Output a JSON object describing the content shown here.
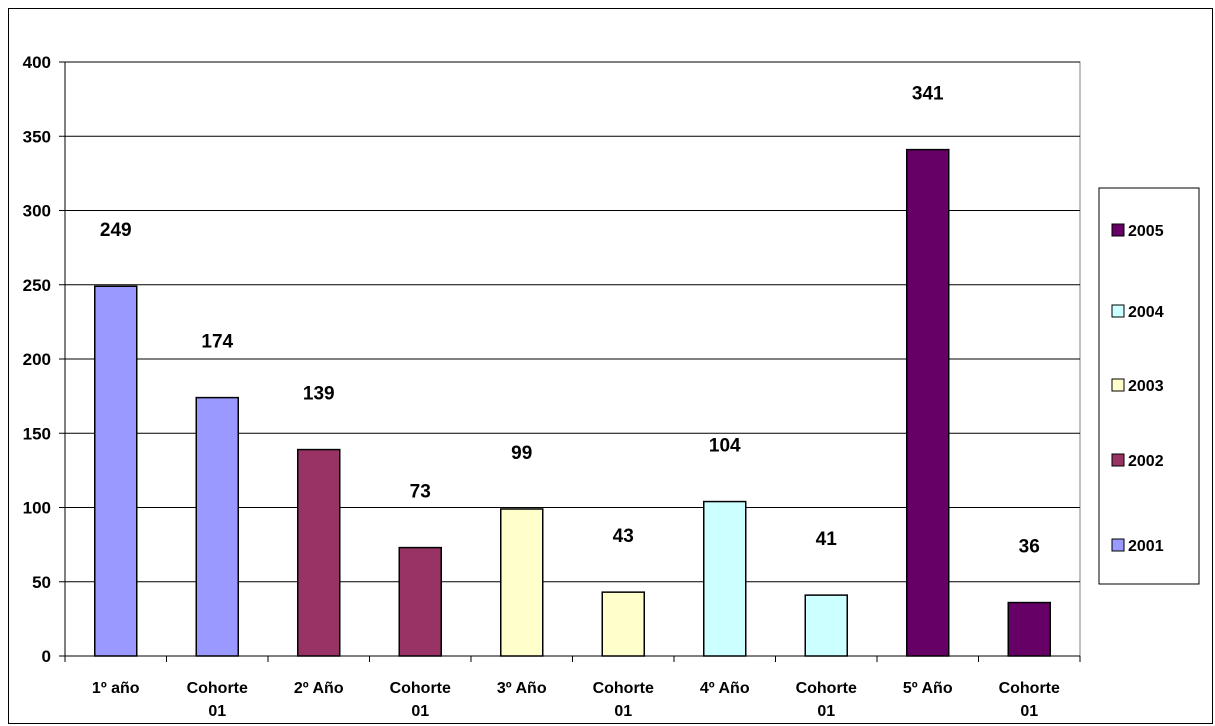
{
  "chart_data": {
    "type": "bar",
    "title": "",
    "xlabel": "",
    "ylabel": "",
    "ylim": [
      0,
      400
    ],
    "yticks": [
      0,
      50,
      100,
      150,
      200,
      250,
      300,
      350,
      400
    ],
    "grid": true,
    "legend_position": "right",
    "categories": [
      {
        "line1": "1º  año",
        "line2": ""
      },
      {
        "line1": "Cohorte",
        "line2": "01"
      },
      {
        "line1": "2º Año",
        "line2": ""
      },
      {
        "line1": "Cohorte",
        "line2": "01"
      },
      {
        "line1": "3º Año",
        "line2": ""
      },
      {
        "line1": "Cohorte",
        "line2": "01"
      },
      {
        "line1": "4º Año",
        "line2": ""
      },
      {
        "line1": "Cohorte",
        "line2": "01"
      },
      {
        "line1": "5º Año",
        "line2": ""
      },
      {
        "line1": "Cohorte",
        "line2": "01"
      }
    ],
    "values": [
      249,
      174,
      139,
      73,
      99,
      43,
      104,
      41,
      341,
      36
    ],
    "value_labels": [
      "249",
      "174",
      "139",
      "73",
      "99",
      "43",
      "104",
      "41",
      "341",
      "36"
    ],
    "bar_series": [
      "2001",
      "2001",
      "2002",
      "2002",
      "2003",
      "2003",
      "2004",
      "2004",
      "2005",
      "2005"
    ],
    "legend": [
      {
        "name": "2005",
        "color": "#660066"
      },
      {
        "name": "2004",
        "color": "#CCFFFF"
      },
      {
        "name": "2003",
        "color": "#FFFFCC"
      },
      {
        "name": "2002",
        "color": "#993366"
      },
      {
        "name": "2001",
        "color": "#9999FF"
      }
    ]
  }
}
